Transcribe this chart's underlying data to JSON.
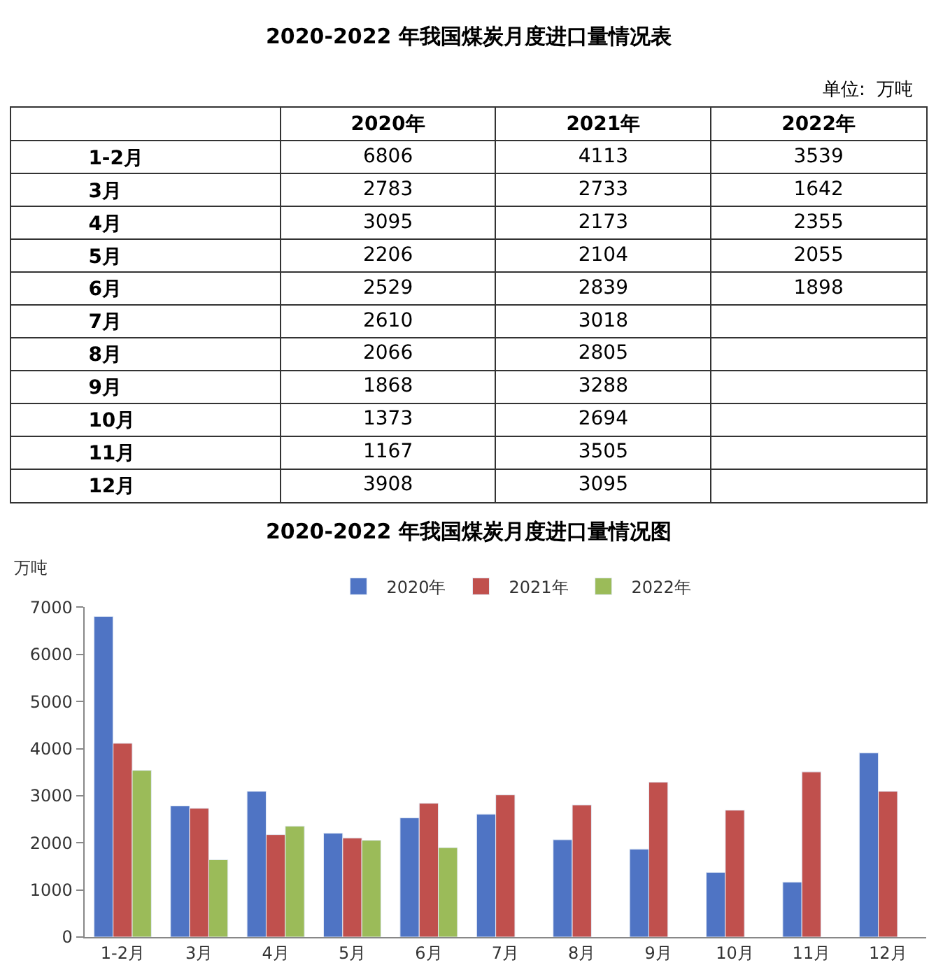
{
  "chart_data": [
    {
      "type": "heatmap",
      "title": "2020-2022 年我国煤炭月度进口量情况表",
      "annotations": [
        "单位:  万吨"
      ],
      "categories": [
        "2020年",
        "2021年",
        "2022年"
      ],
      "y_categories": [
        "1-2月",
        "3月",
        "4月",
        "5月",
        "6月",
        "7月",
        "8月",
        "9月",
        "10月",
        "11月",
        "12月"
      ],
      "cells": [
        [
          6806,
          4113,
          3539
        ],
        [
          2783,
          2733,
          1642
        ],
        [
          3095,
          2173,
          2355
        ],
        [
          2206,
          2104,
          2055
        ],
        [
          2529,
          2839,
          1898
        ],
        [
          2610,
          3018,
          null
        ],
        [
          2066,
          2805,
          null
        ],
        [
          1868,
          3288,
          null
        ],
        [
          1373,
          2694,
          null
        ],
        [
          1167,
          3505,
          null
        ],
        [
          3908,
          3095,
          null
        ]
      ],
      "data_labels": true
    },
    {
      "type": "bar",
      "title": "2020-2022 年我国煤炭月度进口量情况图",
      "ylabel": "万吨",
      "categories": [
        "1-2月",
        "3月",
        "4月",
        "5月",
        "6月",
        "7月",
        "8月",
        "9月",
        "10月",
        "11月",
        "12月"
      ],
      "series": [
        {
          "name": "2020年",
          "color": "#4f74c4",
          "values": [
            6806,
            2783,
            3095,
            2206,
            2529,
            2610,
            2066,
            1868,
            1373,
            1167,
            3908
          ]
        },
        {
          "name": "2021年",
          "color": "#c0504d",
          "values": [
            4113,
            2733,
            2173,
            2104,
            2839,
            3018,
            2805,
            3288,
            2694,
            3505,
            3095
          ]
        },
        {
          "name": "2022年",
          "color": "#9bbb59",
          "values": [
            3539,
            1642,
            2355,
            2055,
            1898,
            null,
            null,
            null,
            null,
            null,
            null
          ]
        }
      ],
      "ylim": [
        0,
        7000
      ],
      "yticks": [
        0,
        1000,
        2000,
        3000,
        4000,
        5000,
        6000,
        7000
      ],
      "legend": "top"
    }
  ]
}
